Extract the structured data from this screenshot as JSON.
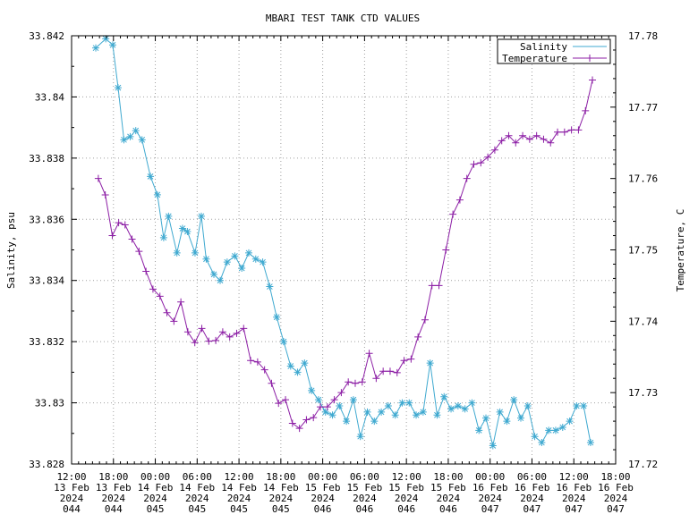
{
  "chart_data": {
    "type": "line",
    "title": "MBARI TEST TANK CTD VALUES",
    "ylabel": "Salinity, psu",
    "y2label": "Temperature, C",
    "xlim": [
      "2024-02-13T12:00",
      "2024-02-16T18:00"
    ],
    "ylim": [
      33.828,
      33.842
    ],
    "y2lim": [
      17.72,
      17.78
    ],
    "grid": true,
    "legend_position": "top-right",
    "x_ticks": [
      {
        "time": "2024-02-13T12:00",
        "lines": [
          "12:00",
          "13 Feb",
          "2024",
          "044"
        ]
      },
      {
        "time": "2024-02-13T18:00",
        "lines": [
          "18:00",
          "13 Feb",
          "2024",
          "044"
        ]
      },
      {
        "time": "2024-02-14T00:00",
        "lines": [
          "00:00",
          "14 Feb",
          "2024",
          "045"
        ]
      },
      {
        "time": "2024-02-14T06:00",
        "lines": [
          "06:00",
          "14 Feb",
          "2024",
          "045"
        ]
      },
      {
        "time": "2024-02-14T12:00",
        "lines": [
          "12:00",
          "14 Feb",
          "2024",
          "045"
        ]
      },
      {
        "time": "2024-02-14T18:00",
        "lines": [
          "18:00",
          "14 Feb",
          "2024",
          "045"
        ]
      },
      {
        "time": "2024-02-15T00:00",
        "lines": [
          "00:00",
          "15 Feb",
          "2024",
          "046"
        ]
      },
      {
        "time": "2024-02-15T06:00",
        "lines": [
          "06:00",
          "15 Feb",
          "2024",
          "046"
        ]
      },
      {
        "time": "2024-02-15T12:00",
        "lines": [
          "12:00",
          "15 Feb",
          "2024",
          "046"
        ]
      },
      {
        "time": "2024-02-15T18:00",
        "lines": [
          "18:00",
          "15 Feb",
          "2024",
          "046"
        ]
      },
      {
        "time": "2024-02-16T00:00",
        "lines": [
          "00:00",
          "16 Feb",
          "2024",
          "047"
        ]
      },
      {
        "time": "2024-02-16T06:00",
        "lines": [
          "06:00",
          "16 Feb",
          "2024",
          "047"
        ]
      },
      {
        "time": "2024-02-16T12:00",
        "lines": [
          "12:00",
          "16 Feb",
          "2024",
          "047"
        ]
      },
      {
        "time": "2024-02-16T18:00",
        "lines": [
          "18:00",
          "16 Feb",
          "2024",
          "047"
        ]
      }
    ],
    "y_ticks": [
      {
        "value": 33.828,
        "label": "33.828"
      },
      {
        "value": 33.83,
        "label": "33.83"
      },
      {
        "value": 33.832,
        "label": "33.832"
      },
      {
        "value": 33.834,
        "label": "33.834"
      },
      {
        "value": 33.836,
        "label": "33.836"
      },
      {
        "value": 33.838,
        "label": "33.838"
      },
      {
        "value": 33.84,
        "label": "33.84"
      },
      {
        "value": 33.842,
        "label": "33.842"
      }
    ],
    "y2_ticks": [
      {
        "value": 17.72,
        "label": "17.72"
      },
      {
        "value": 17.73,
        "label": "17.73"
      },
      {
        "value": 17.74,
        "label": "17.74"
      },
      {
        "value": 17.75,
        "label": "17.75"
      },
      {
        "value": 17.76,
        "label": "17.76"
      },
      {
        "value": 17.77,
        "label": "17.77"
      },
      {
        "value": 17.78,
        "label": "17.78"
      }
    ],
    "series": [
      {
        "name": "Salinity",
        "axis": "left",
        "color": "#3fa9d0",
        "marker": "asterisk",
        "x": [
          "2024-02-13T15:28",
          "2024-02-13T16:54",
          "2024-02-13T17:54",
          "2024-02-13T18:40",
          "2024-02-13T19:30",
          "2024-02-13T20:24",
          "2024-02-13T21:12",
          "2024-02-13T22:06",
          "2024-02-13T23:18",
          "2024-02-14T00:18",
          "2024-02-14T01:12",
          "2024-02-14T01:54",
          "2024-02-14T03:06",
          "2024-02-14T03:54",
          "2024-02-14T04:36",
          "2024-02-14T05:42",
          "2024-02-14T06:36",
          "2024-02-14T07:18",
          "2024-02-14T08:24",
          "2024-02-14T09:18",
          "2024-02-14T10:18",
          "2024-02-14T11:24",
          "2024-02-14T12:24",
          "2024-02-14T13:24",
          "2024-02-14T14:24",
          "2024-02-14T15:24",
          "2024-02-14T16:24",
          "2024-02-14T17:24",
          "2024-02-14T18:24",
          "2024-02-14T19:24",
          "2024-02-14T20:24",
          "2024-02-14T21:24",
          "2024-02-14T22:24",
          "2024-02-14T23:24",
          "2024-02-15T00:24",
          "2024-02-15T01:24",
          "2024-02-15T02:24",
          "2024-02-15T03:24",
          "2024-02-15T04:24",
          "2024-02-15T05:24",
          "2024-02-15T06:24",
          "2024-02-15T07:24",
          "2024-02-15T08:24",
          "2024-02-15T09:24",
          "2024-02-15T10:24",
          "2024-02-15T11:24",
          "2024-02-15T12:24",
          "2024-02-15T13:24",
          "2024-02-15T14:24",
          "2024-02-15T15:24",
          "2024-02-15T16:24",
          "2024-02-15T17:24",
          "2024-02-15T18:24",
          "2024-02-15T19:24",
          "2024-02-15T20:24",
          "2024-02-15T21:24",
          "2024-02-15T22:24",
          "2024-02-15T23:24",
          "2024-02-16T00:24",
          "2024-02-16T01:24",
          "2024-02-16T02:24",
          "2024-02-16T03:24",
          "2024-02-16T04:24",
          "2024-02-16T05:24",
          "2024-02-16T06:24",
          "2024-02-16T07:24",
          "2024-02-16T08:24",
          "2024-02-16T09:24",
          "2024-02-16T10:24",
          "2024-02-16T11:24",
          "2024-02-16T12:24",
          "2024-02-16T13:24",
          "2024-02-16T14:24"
        ],
        "y": [
          33.8416,
          33.8419,
          33.8417,
          33.8403,
          33.8386,
          33.8387,
          33.8389,
          33.8386,
          33.8374,
          33.8368,
          33.8354,
          33.8361,
          33.8349,
          33.8357,
          33.8356,
          33.8349,
          33.8361,
          33.8347,
          33.8342,
          33.834,
          33.8346,
          33.8348,
          33.8344,
          33.8349,
          33.8347,
          33.8346,
          33.8338,
          33.8328,
          33.832,
          33.8312,
          33.831,
          33.8313,
          33.8304,
          33.8301,
          33.8297,
          33.8296,
          33.8299,
          33.8294,
          33.8301,
          33.8289,
          33.8297,
          33.8294,
          33.8297,
          33.8299,
          33.8296,
          33.83,
          33.83,
          33.8296,
          33.8297,
          33.8313,
          33.8296,
          33.8302,
          33.8298,
          33.8299,
          33.8298,
          33.83,
          33.8291,
          33.8295,
          33.8286,
          33.8297,
          33.8294,
          33.8301,
          33.8295,
          33.8299,
          33.8289,
          33.8287,
          33.8291,
          33.8291,
          33.8292,
          33.8294,
          33.8299,
          33.8299,
          33.8287
        ]
      },
      {
        "name": "Temperature",
        "axis": "right",
        "color": "#8c1ea5",
        "marker": "plus",
        "x": [
          "2024-02-13T15:50",
          "2024-02-13T16:50",
          "2024-02-13T17:50",
          "2024-02-13T18:45",
          "2024-02-13T19:40",
          "2024-02-13T20:40",
          "2024-02-13T21:40",
          "2024-02-13T22:40",
          "2024-02-13T23:40",
          "2024-02-14T00:40",
          "2024-02-14T01:40",
          "2024-02-14T02:40",
          "2024-02-14T03:40",
          "2024-02-14T04:40",
          "2024-02-14T05:40",
          "2024-02-14T06:40",
          "2024-02-14T07:40",
          "2024-02-14T08:40",
          "2024-02-14T09:40",
          "2024-02-14T10:40",
          "2024-02-14T11:40",
          "2024-02-14T12:40",
          "2024-02-14T13:40",
          "2024-02-14T14:40",
          "2024-02-14T15:40",
          "2024-02-14T16:40",
          "2024-02-14T17:40",
          "2024-02-14T18:40",
          "2024-02-14T19:40",
          "2024-02-14T20:40",
          "2024-02-14T21:40",
          "2024-02-14T22:40",
          "2024-02-14T23:40",
          "2024-02-15T00:40",
          "2024-02-15T01:40",
          "2024-02-15T02:40",
          "2024-02-15T03:40",
          "2024-02-15T04:40",
          "2024-02-15T05:40",
          "2024-02-15T06:40",
          "2024-02-15T07:40",
          "2024-02-15T08:40",
          "2024-02-15T09:40",
          "2024-02-15T10:40",
          "2024-02-15T11:40",
          "2024-02-15T12:40",
          "2024-02-15T13:40",
          "2024-02-15T14:40",
          "2024-02-15T15:40",
          "2024-02-15T16:40",
          "2024-02-15T17:40",
          "2024-02-15T18:40",
          "2024-02-15T19:40",
          "2024-02-15T20:40",
          "2024-02-15T21:40",
          "2024-02-15T22:40",
          "2024-02-15T23:40",
          "2024-02-16T00:40",
          "2024-02-16T01:40",
          "2024-02-16T02:40",
          "2024-02-16T03:40",
          "2024-02-16T04:40",
          "2024-02-16T05:40",
          "2024-02-16T06:40",
          "2024-02-16T07:40",
          "2024-02-16T08:40",
          "2024-02-16T09:40",
          "2024-02-16T10:40",
          "2024-02-16T11:40",
          "2024-02-16T12:40",
          "2024-02-16T13:40",
          "2024-02-16T14:40"
        ],
        "y": [
          17.76,
          17.7577,
          17.752,
          17.7538,
          17.7535,
          17.7515,
          17.7498,
          17.747,
          17.7445,
          17.7435,
          17.7412,
          17.74,
          17.7427,
          17.7385,
          17.737,
          17.739,
          17.7372,
          17.7373,
          17.7385,
          17.7378,
          17.7383,
          17.739,
          17.7345,
          17.7343,
          17.7332,
          17.7313,
          17.7285,
          17.729,
          17.7257,
          17.725,
          17.7262,
          17.7265,
          17.728,
          17.728,
          17.729,
          17.73,
          17.7315,
          17.7313,
          17.7315,
          17.7355,
          17.732,
          17.733,
          17.733,
          17.7328,
          17.7345,
          17.7347,
          17.7378,
          17.7402,
          17.745,
          17.745,
          17.75,
          17.755,
          17.757,
          17.76,
          17.762,
          17.7622,
          17.763,
          17.764,
          17.7653,
          17.766,
          17.765,
          17.766,
          17.7655,
          17.766,
          17.7655,
          17.765,
          17.7665,
          17.7665,
          17.7668,
          17.7668,
          17.7695,
          17.7738
        ]
      }
    ]
  }
}
